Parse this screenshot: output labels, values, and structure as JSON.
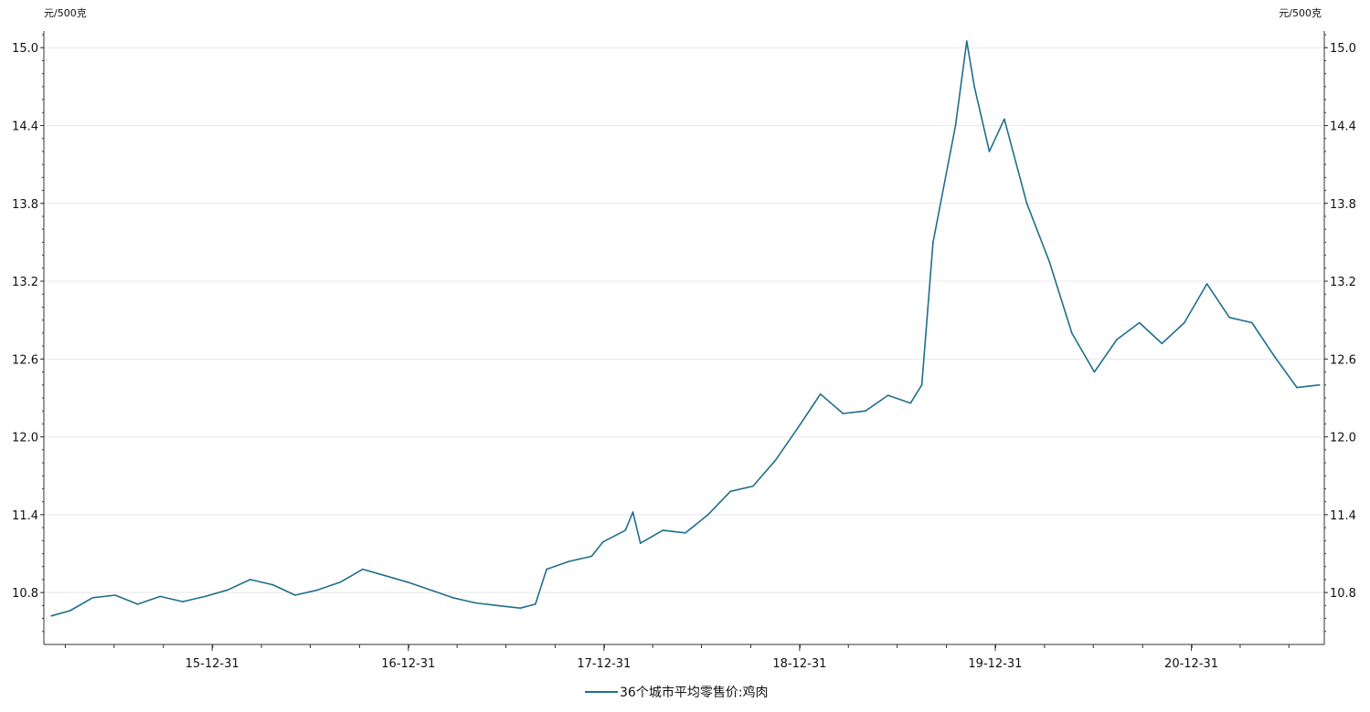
{
  "chart_data": {
    "type": "line",
    "title": "",
    "y_unit_left": "元/500克",
    "y_unit_right": "元/500克",
    "ylim": [
      10.4,
      15.1
    ],
    "yticks": [
      "15.0",
      "14.4",
      "13.8",
      "13.2",
      "12.6",
      "12.0",
      "11.4",
      "10.8"
    ],
    "xticks": [
      "15-12-31",
      "16-12-31",
      "17-12-31",
      "18-12-31",
      "19-12-31",
      "20-12-31"
    ],
    "grid": "horizontal",
    "legend_position": "bottom-center",
    "colors": {
      "line": "#1f6e8c",
      "grid": "#e8e8e8",
      "axis": "#333333"
    },
    "series": [
      {
        "name": "36个城市平均零售价:鸡肉",
        "points": [
          [
            "2015-03-06",
            10.62
          ],
          [
            "2015-04-10",
            10.66
          ],
          [
            "2015-05-22",
            10.76
          ],
          [
            "2015-07-03",
            10.78
          ],
          [
            "2015-08-14",
            10.71
          ],
          [
            "2015-09-25",
            10.77
          ],
          [
            "2015-11-06",
            10.73
          ],
          [
            "2015-12-18",
            10.77
          ],
          [
            "2016-01-29",
            10.82
          ],
          [
            "2016-03-11",
            10.9
          ],
          [
            "2016-04-22",
            10.86
          ],
          [
            "2016-06-03",
            10.78
          ],
          [
            "2016-07-15",
            10.82
          ],
          [
            "2016-08-26",
            10.88
          ],
          [
            "2016-10-07",
            10.98
          ],
          [
            "2016-11-18",
            10.93
          ],
          [
            "2016-12-30",
            10.88
          ],
          [
            "2017-02-10",
            10.82
          ],
          [
            "2017-03-24",
            10.76
          ],
          [
            "2017-05-05",
            10.72
          ],
          [
            "2017-06-16",
            10.7
          ],
          [
            "2017-07-28",
            10.68
          ],
          [
            "2017-08-25",
            10.71
          ],
          [
            "2017-09-15",
            10.98
          ],
          [
            "2017-10-27",
            11.04
          ],
          [
            "2017-12-08",
            11.08
          ],
          [
            "2017-12-29",
            11.19
          ],
          [
            "2018-02-09",
            11.28
          ],
          [
            "2018-02-23",
            11.42
          ],
          [
            "2018-03-09",
            11.18
          ],
          [
            "2018-04-20",
            11.28
          ],
          [
            "2018-06-01",
            11.26
          ],
          [
            "2018-07-13",
            11.4
          ],
          [
            "2018-08-24",
            11.58
          ],
          [
            "2018-10-05",
            11.62
          ],
          [
            "2018-11-16",
            11.82
          ],
          [
            "2018-12-28",
            12.07
          ],
          [
            "2019-02-08",
            12.33
          ],
          [
            "2019-03-22",
            12.18
          ],
          [
            "2019-05-03",
            12.2
          ],
          [
            "2019-06-14",
            12.32
          ],
          [
            "2019-07-26",
            12.26
          ],
          [
            "2019-08-16",
            12.4
          ],
          [
            "2019-09-06",
            13.5
          ],
          [
            "2019-10-18",
            14.4
          ],
          [
            "2019-11-08",
            15.05
          ],
          [
            "2019-11-22",
            14.7
          ],
          [
            "2019-12-20",
            14.2
          ],
          [
            "2020-01-17",
            14.45
          ],
          [
            "2020-02-28",
            13.8
          ],
          [
            "2020-04-10",
            13.35
          ],
          [
            "2020-05-22",
            12.8
          ],
          [
            "2020-07-03",
            12.5
          ],
          [
            "2020-08-14",
            12.75
          ],
          [
            "2020-09-25",
            12.88
          ],
          [
            "2020-11-06",
            12.72
          ],
          [
            "2020-12-18",
            12.88
          ],
          [
            "2021-01-29",
            13.18
          ],
          [
            "2021-03-12",
            12.92
          ],
          [
            "2021-04-23",
            12.88
          ],
          [
            "2021-06-04",
            12.62
          ],
          [
            "2021-07-16",
            12.38
          ],
          [
            "2021-08-27",
            12.4
          ]
        ]
      }
    ]
  }
}
